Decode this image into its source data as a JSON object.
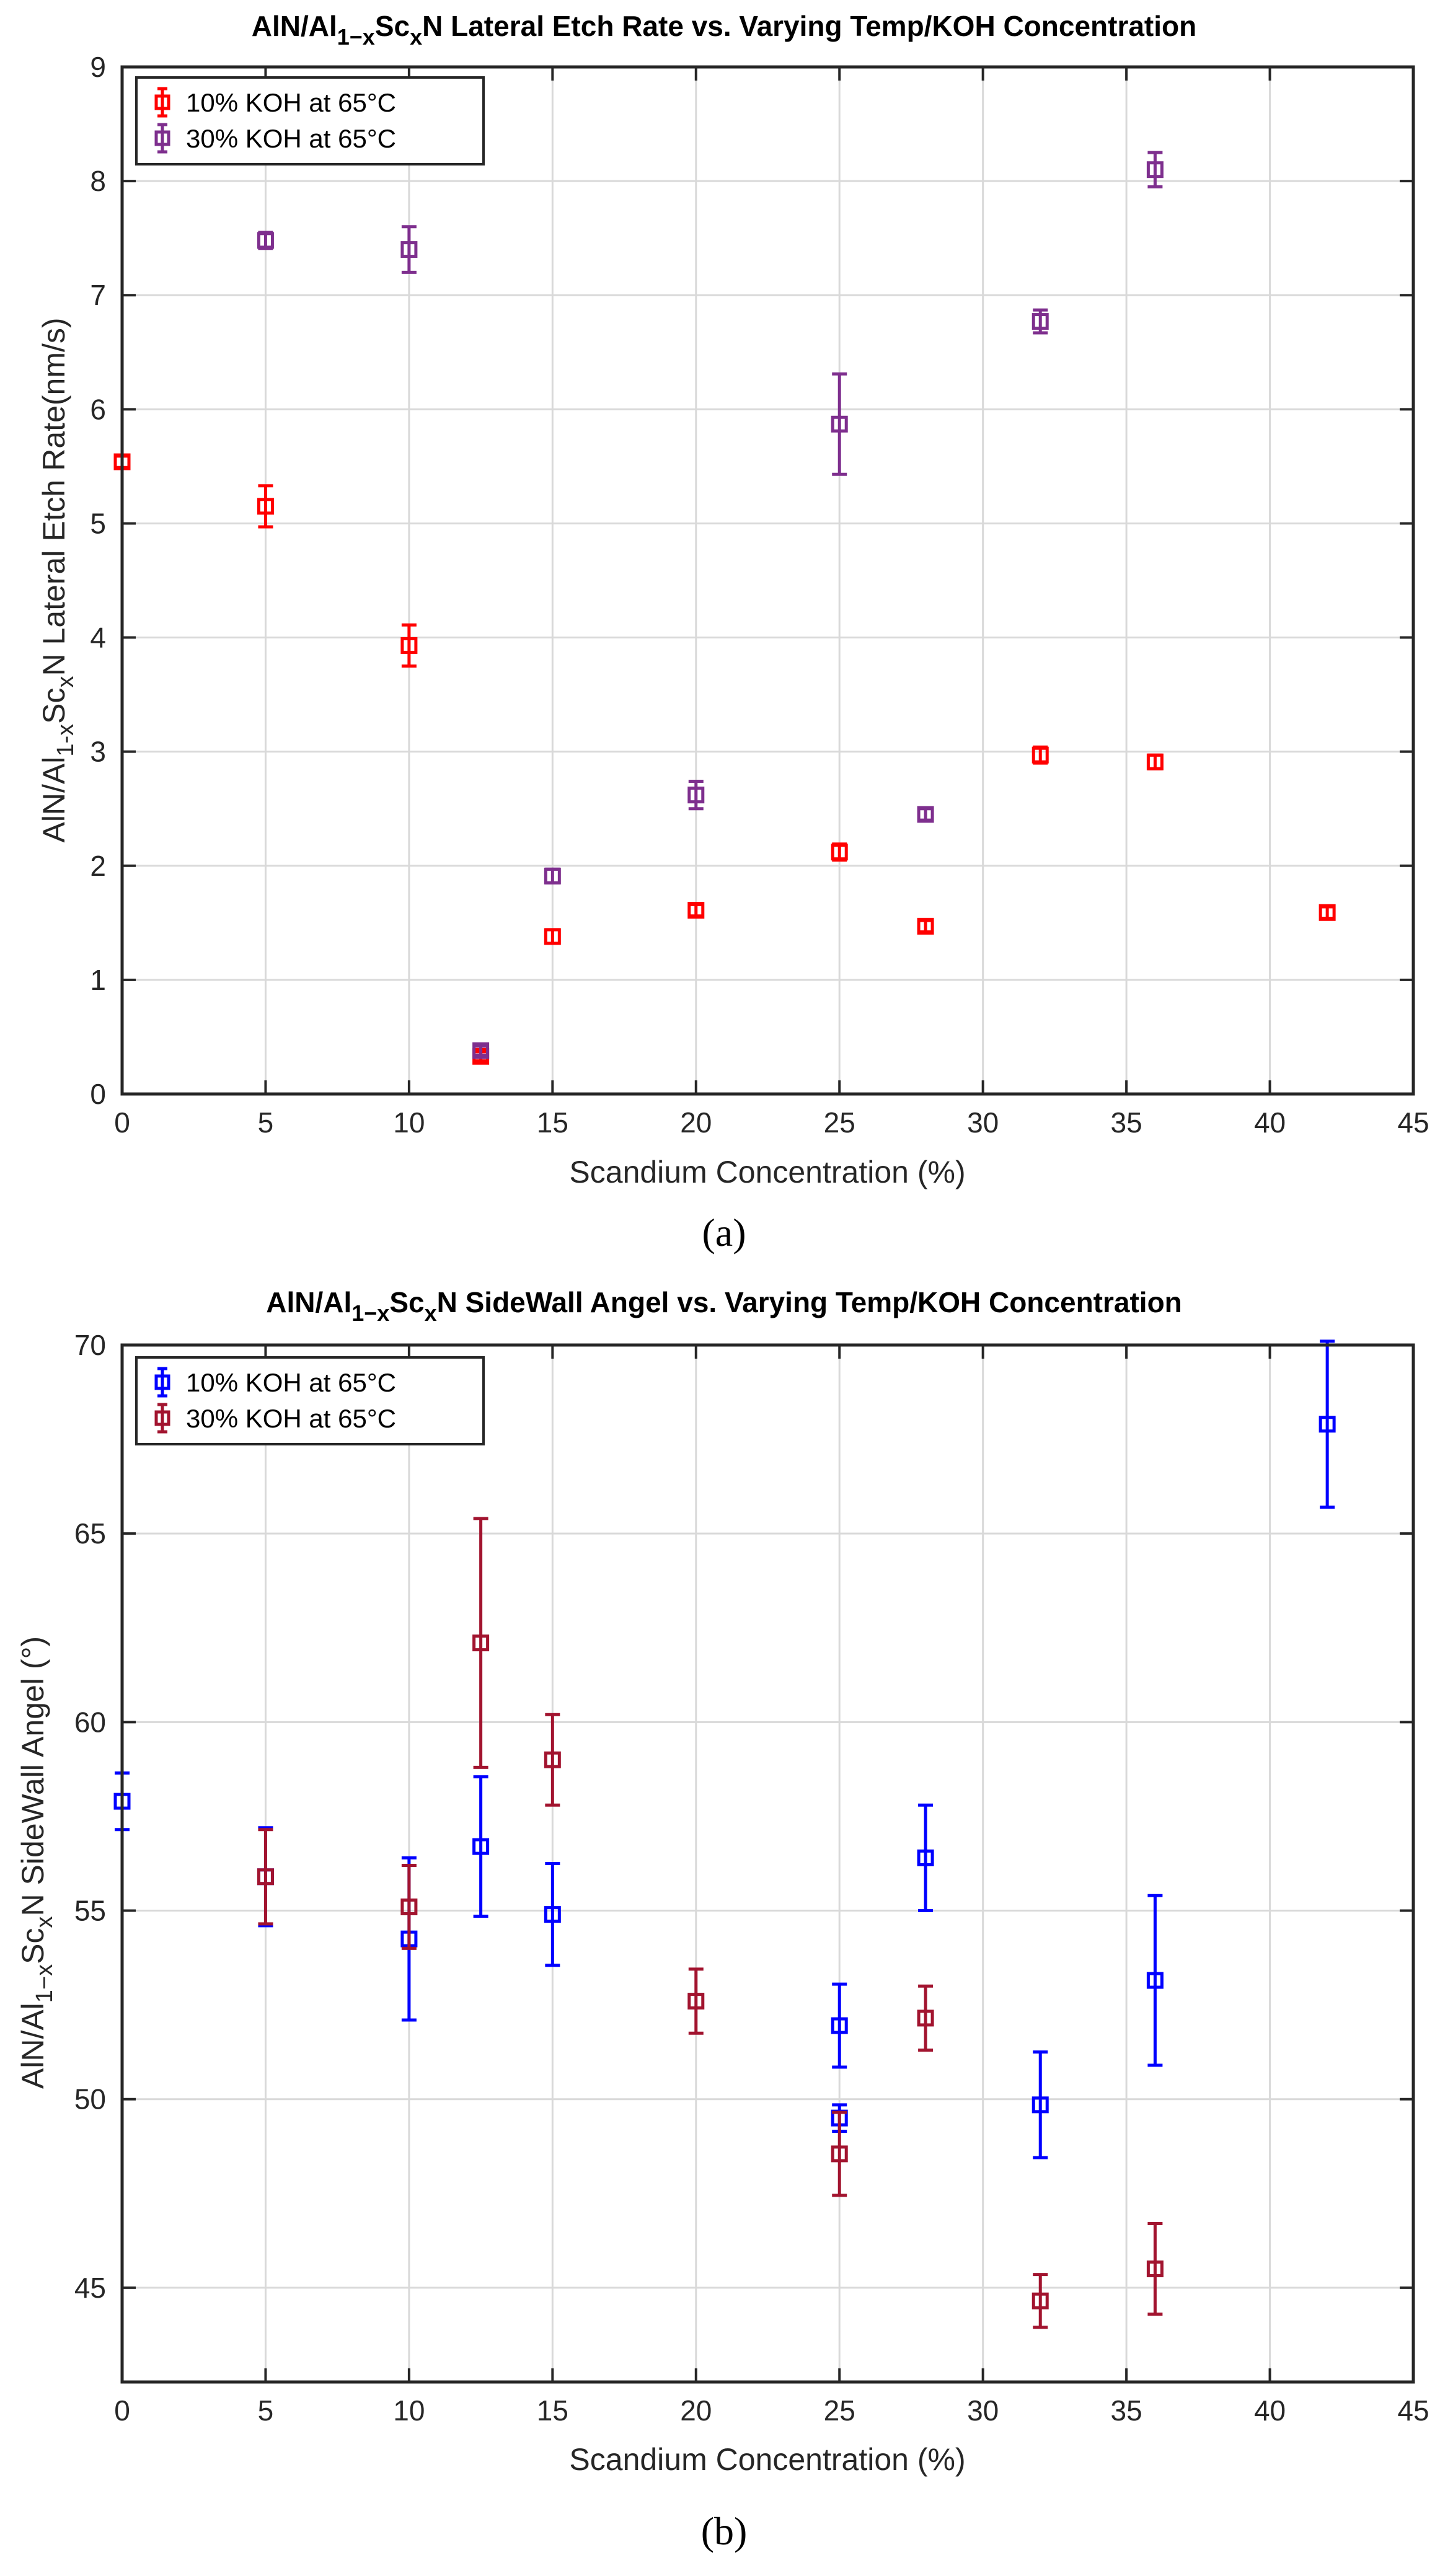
{
  "chart_data": [
    {
      "type": "scatter",
      "panel_label": "(a)",
      "title": {
        "pre": "AlN/Al",
        "sub1": "1−x",
        "mid": "Sc",
        "sub2": "x",
        "post": "N Lateral Etch Rate vs. Varying Temp/KOH Concentration"
      },
      "xlabel": "Scandium Concentration (%)",
      "ylabel": {
        "pre": "AlN/Al",
        "sub1": "1-x",
        "mid": "Sc",
        "sub2": "x",
        "post": "N Lateral Etch Rate(nm/s)"
      },
      "xlim": [
        0,
        45
      ],
      "ylim": [
        0,
        9
      ],
      "xticks": [
        0,
        5,
        10,
        15,
        20,
        25,
        30,
        35,
        40,
        45
      ],
      "yticks": [
        0,
        1,
        2,
        3,
        4,
        5,
        6,
        7,
        8,
        9
      ],
      "grid": true,
      "legend_position": "top-left",
      "series": [
        {
          "name": "10% KOH at 65°C",
          "color": "#ff0000",
          "x": [
            0,
            5,
            10,
            12.5,
            15,
            20,
            25,
            28,
            32,
            36,
            42
          ],
          "y": [
            5.54,
            5.15,
            3.93,
            0.33,
            1.38,
            1.61,
            2.12,
            1.47,
            2.97,
            2.91,
            1.59
          ],
          "err": [
            0.05,
            0.18,
            0.18,
            0.04,
            0.06,
            0.05,
            0.07,
            0.05,
            0.07,
            0.06,
            0.05
          ]
        },
        {
          "name": "30% KOH at 65°C",
          "color": "#7e2f8e",
          "x": [
            5,
            10,
            12.5,
            15,
            20,
            25,
            28,
            32,
            36
          ],
          "y": [
            7.48,
            7.4,
            0.38,
            1.91,
            2.62,
            5.87,
            2.45,
            6.77,
            8.1
          ],
          "err": [
            0.07,
            0.2,
            0.04,
            0.06,
            0.12,
            0.44,
            0.05,
            0.1,
            0.15
          ]
        }
      ]
    },
    {
      "type": "scatter",
      "panel_label": "(b)",
      "title": {
        "pre": "AlN/Al",
        "sub1": "1−x",
        "mid": "Sc",
        "sub2": "x",
        "post": "N SideWall Angel vs. Varying Temp/KOH Concentration"
      },
      "xlabel": "Scandium Concentration (%)",
      "ylabel": {
        "pre": "AlN/Al",
        "sub1": "1−x",
        "mid": "Sc",
        "sub2": "x",
        "post": "N SideWall Angel (°)"
      },
      "xlim": [
        0,
        45
      ],
      "ylim": [
        42.5,
        70
      ],
      "xticks": [
        0,
        5,
        10,
        15,
        20,
        25,
        30,
        35,
        40,
        45
      ],
      "yticks": [
        45,
        50,
        55,
        60,
        65,
        70
      ],
      "grid": true,
      "legend_position": "top-left",
      "series": [
        {
          "name": "10% KOH at 65°C",
          "color": "#0000ff",
          "x": [
            0,
            5,
            10,
            12.5,
            15,
            25,
            25,
            28,
            32,
            36,
            42
          ],
          "y": [
            57.9,
            55.9,
            54.25,
            56.7,
            54.9,
            51.95,
            49.5,
            56.4,
            49.85,
            53.15,
            67.9
          ],
          "err": [
            0.75,
            1.3,
            2.15,
            1.85,
            1.35,
            1.1,
            0.35,
            1.4,
            1.4,
            2.25,
            2.2
          ]
        },
        {
          "name": "30% KOH at 65°C",
          "color": "#a2142f",
          "x": [
            5,
            10,
            12.5,
            15,
            20,
            25,
            28,
            32,
            36
          ],
          "y": [
            55.9,
            55.1,
            62.1,
            59.0,
            52.6,
            48.55,
            52.15,
            44.65,
            45.5
          ],
          "err": [
            1.25,
            1.1,
            3.3,
            1.2,
            0.85,
            1.1,
            0.85,
            0.7,
            1.2
          ]
        }
      ]
    }
  ]
}
